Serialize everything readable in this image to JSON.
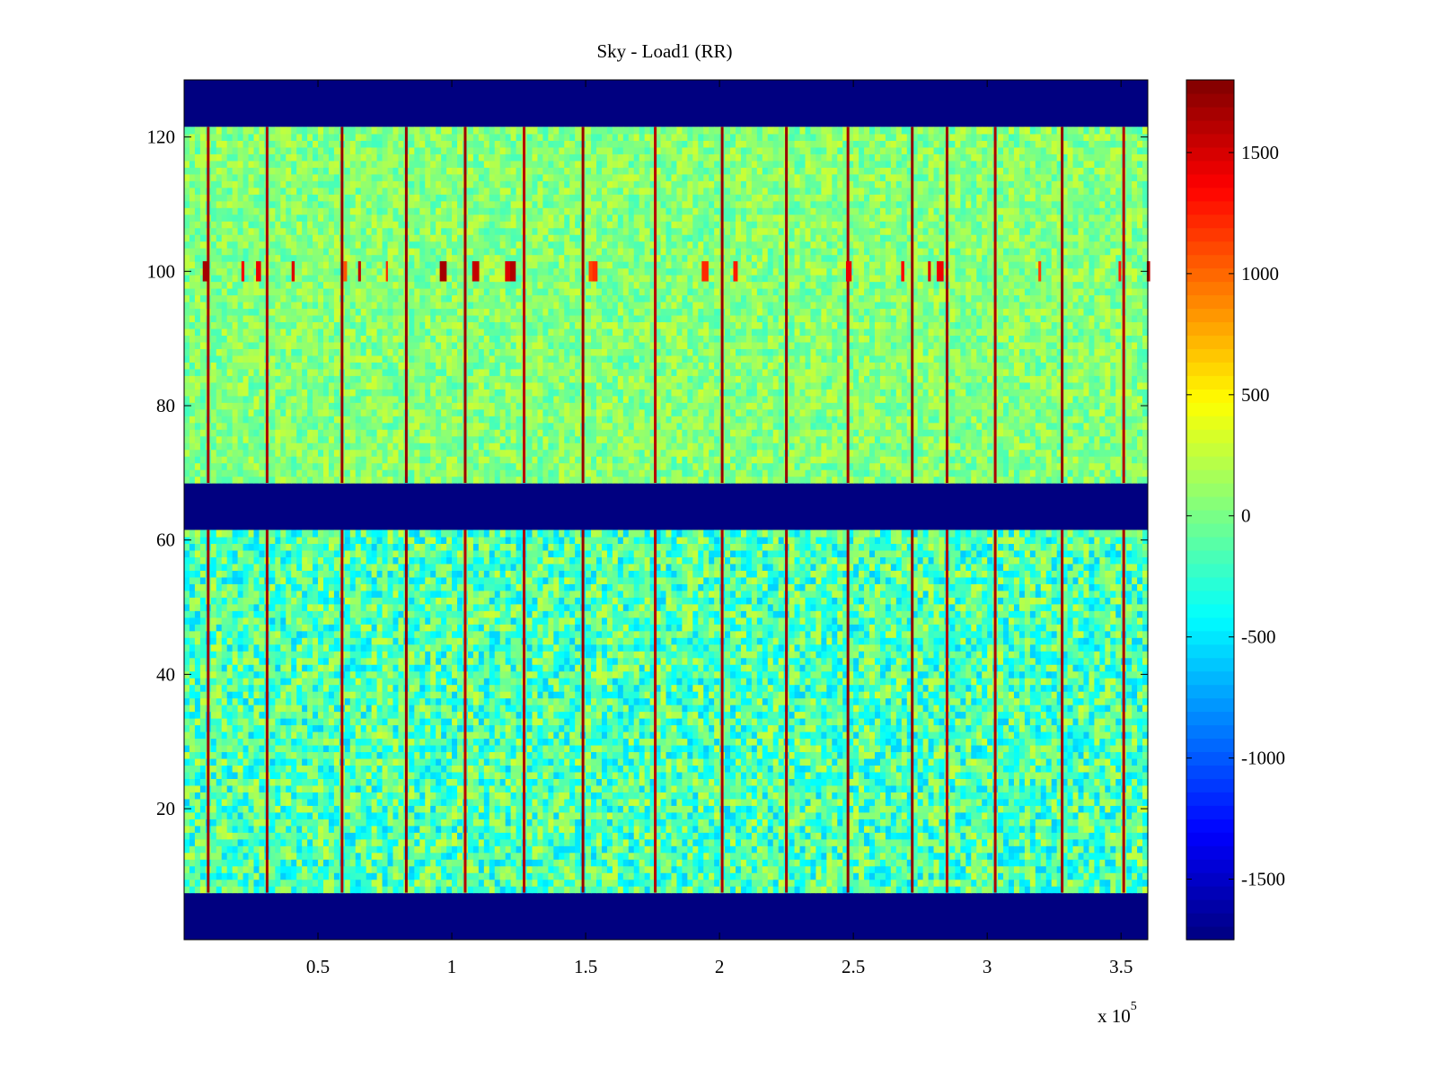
{
  "chart_data": {
    "type": "heatmap",
    "title": "Sky - Load1 (RR)",
    "xlabel": "",
    "ylabel": "",
    "x_exponent_label": "x 10",
    "x_exponent_power": "5",
    "xlim": [
      0,
      360000
    ],
    "ylim": [
      0.5,
      128.5
    ],
    "x_ticks": [
      50000,
      100000,
      150000,
      200000,
      250000,
      300000,
      350000
    ],
    "x_tick_labels": [
      "0.5",
      "1",
      "1.5",
      "2",
      "2.5",
      "3",
      "3.5"
    ],
    "y_ticks": [
      20,
      40,
      60,
      80,
      100,
      120
    ],
    "y_tick_labels": [
      "20",
      "40",
      "60",
      "80",
      "100",
      "120"
    ],
    "colorbar": {
      "clim": [
        -1750,
        1800
      ],
      "colormap": "jet",
      "ticks": [
        1500,
        1000,
        500,
        0,
        -500,
        -1000,
        -1500
      ],
      "tick_labels": [
        "1500",
        "1000",
        "500",
        "0",
        "-500",
        "-1000",
        "-1500"
      ]
    },
    "masked_row_bands": [
      {
        "rows": [
          1,
          7
        ],
        "value": -1750
      },
      {
        "rows": [
          62,
          68
        ],
        "value": -1750
      },
      {
        "rows": [
          122,
          128
        ],
        "value": -1750
      }
    ],
    "data_row_bands": [
      {
        "rows": [
          8,
          61
        ],
        "typical_value": -150,
        "spread": 450
      },
      {
        "rows": [
          69,
          121
        ],
        "typical_value": 50,
        "spread": 250
      }
    ],
    "high_value_columns_x": [
      9000,
      31000,
      59000,
      83000,
      105000,
      127000,
      149000,
      176000,
      201000,
      225000,
      248000,
      272000,
      285000,
      303000,
      328000,
      351000
    ],
    "high_value_row_patches_y": [
      100
    ]
  }
}
